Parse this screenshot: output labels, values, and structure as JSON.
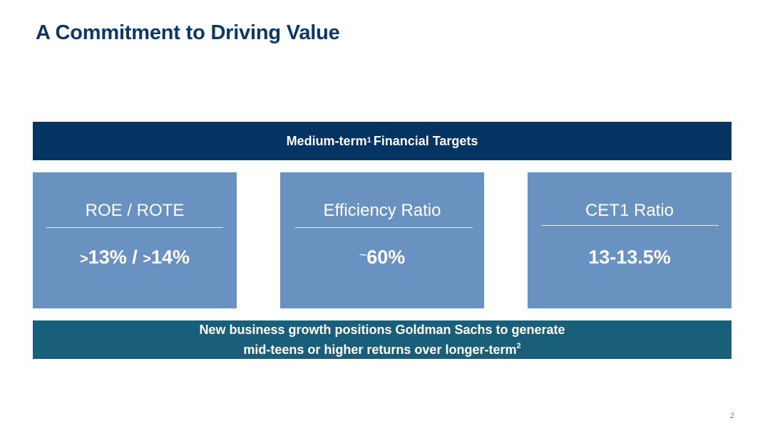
{
  "title": "A Commitment to Driving Value",
  "banner": {
    "text_before": "Medium-term",
    "footnote": "1",
    "text_after": "Financial Targets"
  },
  "cards": [
    {
      "label": "ROE / ROTE",
      "value_parts": [
        ">",
        "13%",
        " / ",
        ">",
        "14%"
      ]
    },
    {
      "label": "Efficiency Ratio",
      "value_prefix": "~",
      "value": "60%"
    },
    {
      "label": "CET1 Ratio",
      "value": "13-13.5%"
    }
  ],
  "growth": {
    "line1": "New business growth positions Goldman Sachs to generate",
    "line2": "mid-teens or higher returns over longer-term",
    "footnote": "2"
  },
  "page_number": "2",
  "colors": {
    "title": "#0b3866",
    "banner_bg": "#063462",
    "card_bg": "#6a92c0",
    "growth_bg": "#1a5f7a"
  }
}
